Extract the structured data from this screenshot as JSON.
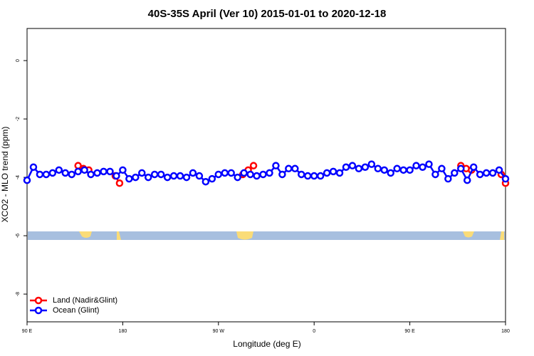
{
  "chart_data": {
    "type": "line",
    "title": "40S-35S April (Ver 10)   2015-01-01 to 2020-12-18",
    "xlabel": "Longitude (deg E)",
    "ylabel": "XCO2 - MLO trend (ppm)",
    "xlim": [
      90,
      540
    ],
    "ylim": [
      -8.95,
      1.1
    ],
    "xticks": [
      {
        "value": 90,
        "label": "90 E"
      },
      {
        "value": 180,
        "label": "180"
      },
      {
        "value": 270,
        "label": "90 W"
      },
      {
        "value": 360,
        "label": "0"
      },
      {
        "value": 450,
        "label": "90 E"
      },
      {
        "value": 540,
        "label": "180"
      }
    ],
    "yticks": [
      0,
      -2,
      -4,
      -6,
      -8
    ],
    "legend": "bottomleft",
    "series": [
      {
        "name": "Land (Nadir&Glint)",
        "color": "#ff0000",
        "x": [
          138,
          143,
          148,
          null,
          173,
          177,
          null,
          293,
          298,
          303,
          null,
          498,
          503,
          508,
          null,
          536,
          540
        ],
        "values": [
          -3.6,
          -3.7,
          -3.75,
          null,
          -3.95,
          -4.2,
          null,
          -3.9,
          -3.75,
          -3.6,
          null,
          -3.6,
          -3.7,
          -3.75,
          null,
          -3.9,
          -4.2
        ]
      },
      {
        "name": "Ocean (Glint)",
        "color": "#0000ff",
        "x": [
          90,
          96,
          102,
          108,
          114,
          120,
          126,
          132,
          138,
          144,
          150,
          156,
          162,
          168,
          174,
          180,
          186,
          192,
          198,
          204,
          210,
          216,
          222,
          228,
          234,
          240,
          246,
          252,
          258,
          264,
          270,
          276,
          282,
          288,
          294,
          300,
          306,
          312,
          318,
          324,
          330,
          336,
          342,
          348,
          354,
          360,
          366,
          372,
          378,
          384,
          390,
          396,
          402,
          408,
          414,
          420,
          426,
          432,
          438,
          444,
          450,
          456,
          462,
          468,
          474,
          480,
          486,
          492,
          498,
          504,
          510,
          516,
          522,
          528,
          534,
          540
        ],
        "values": [
          -4.1,
          -3.65,
          -3.9,
          -3.9,
          -3.85,
          -3.75,
          -3.85,
          -3.9,
          -3.8,
          -3.75,
          -3.9,
          -3.85,
          -3.8,
          -3.8,
          -3.95,
          -3.75,
          -4.05,
          -4.0,
          -3.85,
          -4.0,
          -3.9,
          -3.9,
          -4.0,
          -3.95,
          -3.95,
          -4.0,
          -3.85,
          -3.95,
          -4.15,
          -4.05,
          -3.9,
          -3.85,
          -3.85,
          -4.0,
          -3.85,
          -3.9,
          -3.95,
          -3.9,
          -3.85,
          -3.6,
          -3.9,
          -3.7,
          -3.7,
          -3.9,
          -3.95,
          -3.95,
          -3.95,
          -3.85,
          -3.8,
          -3.85,
          -3.65,
          -3.6,
          -3.7,
          -3.65,
          -3.55,
          -3.7,
          -3.75,
          -3.85,
          -3.7,
          -3.75,
          -3.75,
          -3.6,
          -3.65,
          -3.55,
          -3.9,
          -3.7,
          -4.05,
          -3.85,
          -3.7,
          -4.1,
          -3.65,
          -3.9,
          -3.85,
          -3.85,
          -3.75,
          -4.05
        ]
      }
    ]
  }
}
